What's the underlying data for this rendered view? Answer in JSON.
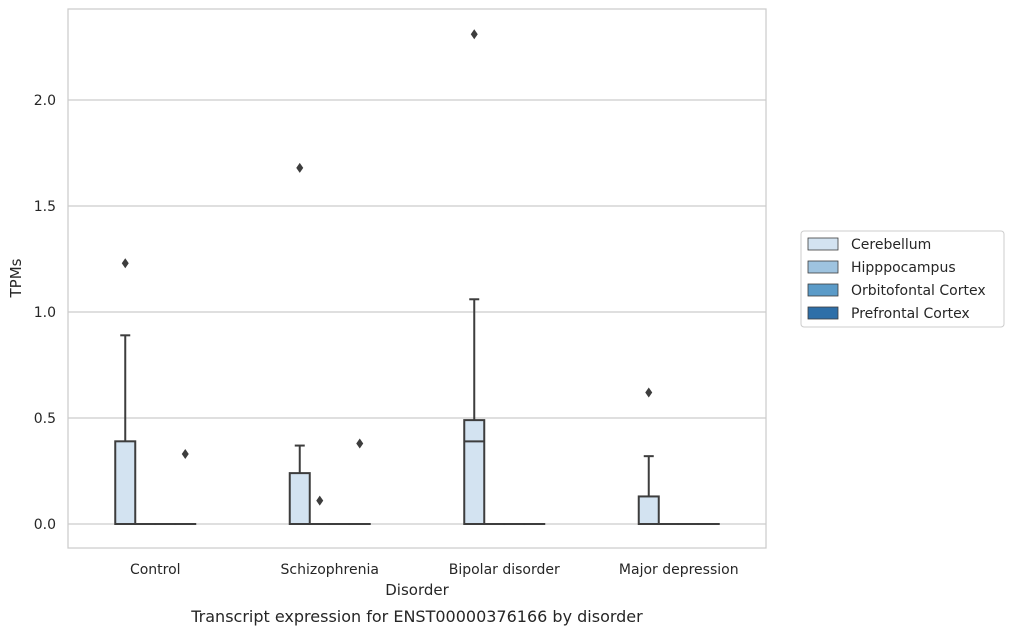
{
  "caption": "Transcript expression for ENST00000376166 by disorder",
  "chart_data": {
    "type": "box",
    "title": "",
    "xlabel": "Disorder",
    "ylabel": "TPMs",
    "ylim": [
      -0.11,
      2.43
    ],
    "yticks": [
      "0.0",
      "0.5",
      "1.0",
      "1.5",
      "2.0"
    ],
    "categories": [
      "Control",
      "Schizophrenia",
      "Bipolar disorder",
      "Major depression"
    ],
    "grid": "horizontal",
    "legend_position": "right",
    "series": [
      {
        "name": "Cerebellum",
        "color": "#d3e3f1",
        "boxes": [
          {
            "category": "Control",
            "whisker_low": 0.0,
            "q1": 0.0,
            "median": 0.0,
            "q3": 0.39,
            "whisker_high": 0.89,
            "outliers": [
              1.23
            ]
          },
          {
            "category": "Schizophrenia",
            "whisker_low": 0.0,
            "q1": 0.0,
            "median": 0.0,
            "q3": 0.24,
            "whisker_high": 0.37,
            "outliers": [
              1.68
            ]
          },
          {
            "category": "Bipolar disorder",
            "whisker_low": 0.0,
            "q1": 0.0,
            "median": 0.39,
            "q3": 0.49,
            "whisker_high": 1.06,
            "outliers": [
              2.31
            ]
          },
          {
            "category": "Major depression",
            "whisker_low": 0.0,
            "q1": 0.0,
            "median": 0.0,
            "q3": 0.13,
            "whisker_high": 0.32,
            "outliers": [
              0.62
            ]
          }
        ]
      },
      {
        "name": "Hipppocampus",
        "color": "#9ec3df",
        "boxes": [
          {
            "category": "Control",
            "whisker_low": 0,
            "q1": 0,
            "median": 0,
            "q3": 0,
            "whisker_high": 0,
            "outliers": []
          },
          {
            "category": "Schizophrenia",
            "whisker_low": 0,
            "q1": 0,
            "median": 0,
            "q3": 0,
            "whisker_high": 0,
            "outliers": [
              0.11
            ]
          },
          {
            "category": "Bipolar disorder",
            "whisker_low": 0,
            "q1": 0,
            "median": 0,
            "q3": 0,
            "whisker_high": 0,
            "outliers": []
          },
          {
            "category": "Major depression",
            "whisker_low": 0,
            "q1": 0,
            "median": 0,
            "q3": 0,
            "whisker_high": 0,
            "outliers": []
          }
        ]
      },
      {
        "name": "Orbitofontal Cortex",
        "color": "#5b9bc8",
        "boxes": [
          {
            "category": "Control",
            "whisker_low": 0,
            "q1": 0,
            "median": 0,
            "q3": 0,
            "whisker_high": 0,
            "outliers": []
          },
          {
            "category": "Schizophrenia",
            "whisker_low": 0,
            "q1": 0,
            "median": 0,
            "q3": 0,
            "whisker_high": 0,
            "outliers": []
          },
          {
            "category": "Bipolar disorder",
            "whisker_low": 0,
            "q1": 0,
            "median": 0,
            "q3": 0,
            "whisker_high": 0,
            "outliers": []
          },
          {
            "category": "Major depression",
            "whisker_low": 0,
            "q1": 0,
            "median": 0,
            "q3": 0,
            "whisker_high": 0,
            "outliers": []
          }
        ]
      },
      {
        "name": "Prefrontal Cortex",
        "color": "#2e6fa8",
        "boxes": [
          {
            "category": "Control",
            "whisker_low": 0,
            "q1": 0,
            "median": 0,
            "q3": 0,
            "whisker_high": 0,
            "outliers": [
              0.33
            ]
          },
          {
            "category": "Schizophrenia",
            "whisker_low": 0,
            "q1": 0,
            "median": 0,
            "q3": 0,
            "whisker_high": 0,
            "outliers": [
              0.38
            ]
          },
          {
            "category": "Bipolar disorder",
            "whisker_low": 0,
            "q1": 0,
            "median": 0,
            "q3": 0,
            "whisker_high": 0,
            "outliers": []
          },
          {
            "category": "Major depression",
            "whisker_low": 0,
            "q1": 0,
            "median": 0,
            "q3": 0,
            "whisker_high": 0,
            "outliers": []
          }
        ]
      }
    ]
  }
}
